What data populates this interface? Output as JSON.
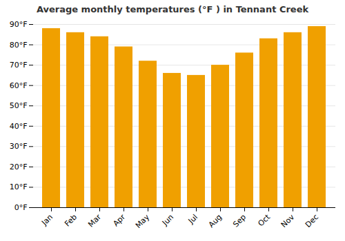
{
  "chart_data": {
    "type": "bar",
    "title": "Average monthly temperatures (°F ) in Tennant Creek",
    "categories": [
      "Jan",
      "Feb",
      "Mar",
      "Apr",
      "May",
      "Jun",
      "Jul",
      "Aug",
      "Sep",
      "Oct",
      "Nov",
      "Dec"
    ],
    "values": [
      88,
      86,
      84,
      79,
      72,
      66,
      65,
      70,
      76,
      83,
      86,
      89
    ],
    "color": "#F0A000",
    "ylim": [
      0,
      90
    ],
    "yticks": [
      {
        "value": 0,
        "label": "0°F"
      },
      {
        "value": 10,
        "label": "10°F"
      },
      {
        "value": 20,
        "label": "20°F"
      },
      {
        "value": 30,
        "label": "30°F"
      },
      {
        "value": 40,
        "label": "40°F"
      },
      {
        "value": 50,
        "label": "50°F"
      },
      {
        "value": 60,
        "label": "60°F"
      },
      {
        "value": 70,
        "label": "70°F"
      },
      {
        "value": 80,
        "label": "80°F"
      },
      {
        "value": 90,
        "label": "90°F"
      }
    ],
    "grid": true
  }
}
